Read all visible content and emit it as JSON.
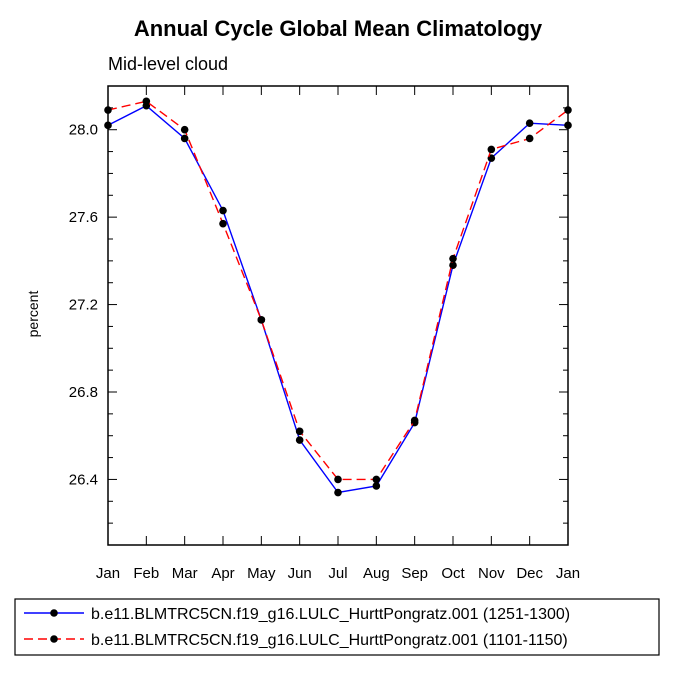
{
  "chart_data": {
    "type": "line",
    "title": "Annual Cycle Global Mean Climatology",
    "subtitle": "Mid-level cloud",
    "xlabel": "",
    "ylabel": "percent",
    "categories": [
      "Jan",
      "Feb",
      "Mar",
      "Apr",
      "May",
      "Jun",
      "Jul",
      "Aug",
      "Sep",
      "Oct",
      "Nov",
      "Dec",
      "Jan"
    ],
    "ylim": [
      26.1,
      28.2
    ],
    "yticks": [
      26.4,
      26.8,
      27.2,
      27.6,
      28.0
    ],
    "ytick_labels": [
      "26.4",
      "26.8",
      "27.2",
      "27.6",
      "28.0"
    ],
    "grid": false,
    "legend_position": "bottom",
    "series": [
      {
        "name": "b.e11.BLMTRC5CN.f19_g16.LULC_HurttPongratz.001 (1251-1300)",
        "color": "#0000ff",
        "dash": "solid",
        "values": [
          28.02,
          28.11,
          27.96,
          27.63,
          27.13,
          26.58,
          26.34,
          26.37,
          26.66,
          27.38,
          27.87,
          28.03,
          28.02
        ]
      },
      {
        "name": "b.e11.BLMTRC5CN.f19_g16.LULC_HurttPongratz.001 (1101-1150)",
        "color": "#ff0000",
        "dash": "dashed",
        "values": [
          28.09,
          28.13,
          28.0,
          27.57,
          27.13,
          26.62,
          26.4,
          26.4,
          26.67,
          27.41,
          27.91,
          27.96,
          28.09
        ]
      }
    ]
  }
}
